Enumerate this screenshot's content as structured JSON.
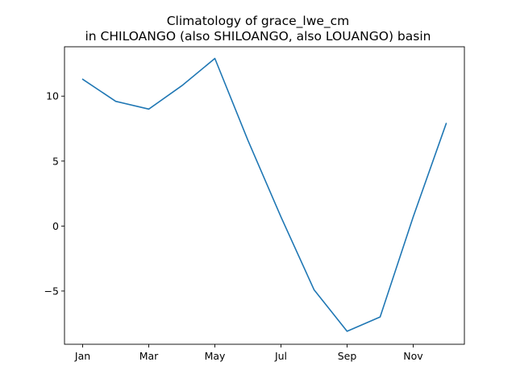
{
  "chart_data": {
    "type": "line",
    "title": "Climatology of grace_lwe_cm",
    "subtitle": "in CHILOANGO (also SHILOANGO, also LOUANGO) basin",
    "xlabel": "",
    "ylabel": "",
    "x": [
      "Jan",
      "Feb",
      "Mar",
      "Apr",
      "May",
      "Jun",
      "Jul",
      "Aug",
      "Sep",
      "Oct",
      "Nov",
      "Dec"
    ],
    "x_tick_labels": [
      "Jan",
      "Mar",
      "May",
      "Jul",
      "Sep",
      "Nov"
    ],
    "y_ticks": [
      -5,
      0,
      5,
      10
    ],
    "ylim": [
      -9.1,
      13.8
    ],
    "series": [
      {
        "values": [
          11.3,
          9.6,
          9.0,
          10.8,
          12.9,
          6.6,
          0.7,
          -4.9,
          -8.1,
          -7.0,
          0.7,
          7.9
        ]
      }
    ],
    "grid": false,
    "legend": "none",
    "colors": {
      "line": "#1f77b4",
      "axes": "#000000",
      "background": "#ffffff"
    }
  }
}
